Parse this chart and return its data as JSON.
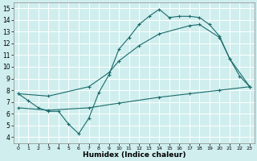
{
  "background_color": "#d0eeee",
  "grid_color": "#ffffff",
  "line_color": "#1a6b6b",
  "xlabel": "Humidex (Indice chaleur)",
  "xlim": [
    -0.5,
    23.5
  ],
  "ylim": [
    3.5,
    15.5
  ],
  "xticks": [
    0,
    1,
    2,
    3,
    4,
    5,
    6,
    7,
    8,
    9,
    10,
    11,
    12,
    13,
    14,
    15,
    16,
    17,
    18,
    19,
    20,
    21,
    22,
    23
  ],
  "yticks": [
    4,
    5,
    6,
    7,
    8,
    9,
    10,
    11,
    12,
    13,
    14,
    15
  ],
  "line1_x": [
    0,
    1,
    2,
    3,
    4,
    5,
    6,
    7,
    8,
    9,
    10,
    11,
    12,
    13,
    14,
    15,
    16,
    17,
    18,
    19,
    20,
    21,
    22,
    23
  ],
  "line1_y": [
    7.7,
    7.1,
    6.5,
    6.2,
    6.2,
    5.1,
    4.3,
    5.6,
    7.8,
    9.3,
    11.5,
    12.5,
    13.6,
    14.3,
    14.9,
    14.2,
    14.3,
    14.3,
    14.2,
    13.6,
    12.6,
    10.7,
    9.2,
    8.3
  ],
  "line2_x": [
    0,
    3,
    7,
    9,
    10,
    12,
    14,
    17,
    18,
    20,
    21,
    23
  ],
  "line2_y": [
    7.7,
    7.5,
    8.3,
    9.5,
    10.5,
    11.8,
    12.8,
    13.5,
    13.6,
    12.5,
    10.7,
    8.3
  ],
  "line3_x": [
    0,
    3,
    7,
    10,
    14,
    17,
    20,
    23
  ],
  "line3_y": [
    6.5,
    6.3,
    6.5,
    6.9,
    7.4,
    7.7,
    8.0,
    8.3
  ]
}
